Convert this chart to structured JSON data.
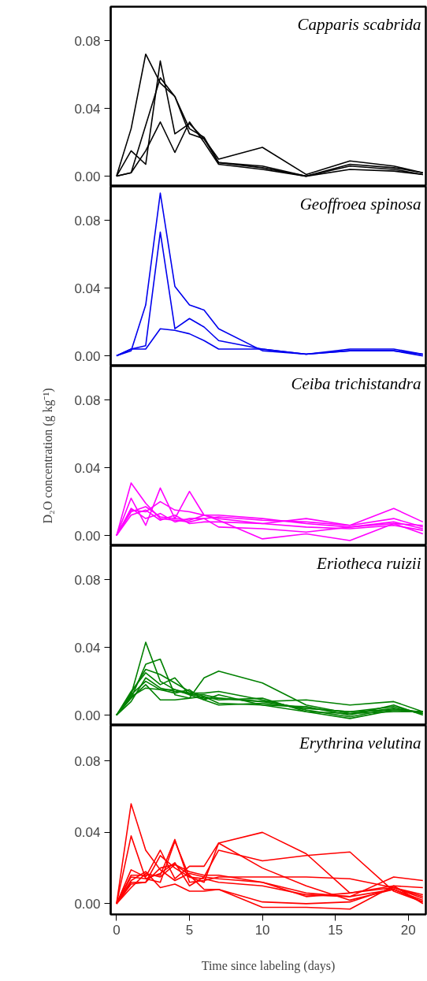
{
  "chart_data": [
    {
      "type": "line",
      "title": "Capparis scabrida",
      "x": [
        0,
        1,
        2,
        3,
        4,
        5,
        6,
        7,
        10,
        13,
        16,
        19,
        21
      ],
      "xlim": [
        -0.4,
        21.2
      ],
      "ylim": [
        -0.006,
        0.1
      ],
      "yticks": [
        {
          "value": 0,
          "label": "0.00"
        },
        {
          "value": 0.04,
          "label": "0.04"
        },
        {
          "value": 0.08,
          "label": "0.08"
        }
      ],
      "tick_labels": "y",
      "series": [
        {
          "color": "#000000",
          "values": [
            0,
            0.028,
            0.072,
            0.055,
            0.047,
            0.025,
            0.022,
            0.01,
            0.017,
            0.001,
            0.009,
            0.006,
            0.002
          ]
        },
        {
          "color": "#000000",
          "values": [
            0,
            0.015,
            0.007,
            0.068,
            0.025,
            0.031,
            0.022,
            0.008,
            0.005,
            0.0,
            0.007,
            0.005,
            0.002
          ]
        },
        {
          "color": "#000000",
          "values": [
            0,
            0.002,
            0.03,
            0.058,
            0.047,
            0.028,
            0.023,
            0.008,
            0.006,
            0.0,
            0.006,
            0.004,
            0.001
          ]
        },
        {
          "color": "#000000",
          "values": [
            0,
            0.002,
            0.015,
            0.032,
            0.014,
            0.032,
            0.02,
            0.007,
            0.004,
            0.0,
            0.004,
            0.003,
            0.001
          ]
        }
      ]
    },
    {
      "type": "line",
      "title": "Geoffroea spinosa",
      "x": [
        0,
        1,
        2,
        3,
        4,
        5,
        6,
        7,
        10,
        13,
        16,
        19,
        21
      ],
      "xlim": [
        -0.4,
        21.2
      ],
      "ylim": [
        -0.006,
        0.1
      ],
      "yticks": [
        {
          "value": 0,
          "label": "0.00"
        },
        {
          "value": 0.04,
          "label": "0.04"
        },
        {
          "value": 0.08,
          "label": "0.08"
        }
      ],
      "tick_labels": "y",
      "series": [
        {
          "color": "#0000ee",
          "values": [
            0,
            0.003,
            0.03,
            0.096,
            0.041,
            0.03,
            0.027,
            0.016,
            0.003,
            0.001,
            0.003,
            0.003,
            0.001
          ]
        },
        {
          "color": "#0000ee",
          "values": [
            0,
            0.004,
            0.006,
            0.073,
            0.016,
            0.022,
            0.017,
            0.009,
            0.004,
            0.001,
            0.004,
            0.004,
            0.001
          ]
        },
        {
          "color": "#0000ee",
          "values": [
            0,
            0.004,
            0.004,
            0.016,
            0.015,
            0.013,
            0.009,
            0.004,
            0.004,
            0.001,
            0.003,
            0.003,
            0.0
          ]
        }
      ]
    },
    {
      "type": "line",
      "title": "Ceiba trichistandra",
      "ylabel": "D₂O concentration (g kg⁻¹)",
      "x": [
        0,
        1,
        2,
        3,
        4,
        5,
        6,
        7,
        10,
        13,
        16,
        19,
        21
      ],
      "xlim": [
        -0.4,
        21.2
      ],
      "ylim": [
        -0.006,
        0.1
      ],
      "yticks": [
        {
          "value": 0,
          "label": "0.00"
        },
        {
          "value": 0.04,
          "label": "0.04"
        },
        {
          "value": 0.08,
          "label": "0.08"
        }
      ],
      "tick_labels": "y",
      "series": [
        {
          "color": "#ff00ff",
          "values": [
            0,
            0.031,
            0.019,
            0.01,
            0.009,
            0.008,
            0.01,
            0.011,
            0.009,
            0.008,
            0.006,
            0.016,
            0.008
          ]
        },
        {
          "color": "#ff00ff",
          "values": [
            0,
            0.022,
            0.006,
            0.028,
            0.01,
            0.009,
            0.012,
            0.01,
            0.007,
            0.01,
            0.006,
            0.01,
            0.005
          ]
        },
        {
          "color": "#ff00ff",
          "values": [
            0,
            0.014,
            0.017,
            0.011,
            0.01,
            0.026,
            0.012,
            0.012,
            0.01,
            0.007,
            0.005,
            0.008,
            0.004
          ]
        },
        {
          "color": "#ff00ff",
          "values": [
            0,
            0.015,
            0.014,
            0.02,
            0.015,
            0.014,
            0.012,
            0.009,
            -0.002,
            0.001,
            -0.003,
            0.007,
            0.001
          ]
        },
        {
          "color": "#ff00ff",
          "values": [
            0,
            0.012,
            0.015,
            0.009,
            0.012,
            0.007,
            0.008,
            0.008,
            0.007,
            0.005,
            0.004,
            0.006,
            0.003
          ]
        },
        {
          "color": "#ff00ff",
          "values": [
            0,
            0.016,
            0.01,
            0.013,
            0.008,
            0.01,
            0.01,
            0.005,
            0.004,
            0.002,
            0.005,
            0.007,
            0.006
          ]
        }
      ]
    },
    {
      "type": "line",
      "title": "Eriotheca ruizii",
      "x": [
        0,
        1,
        2,
        3,
        4,
        5,
        6,
        7,
        10,
        13,
        16,
        19,
        21
      ],
      "xlim": [
        -0.4,
        21.2
      ],
      "ylim": [
        -0.006,
        0.1
      ],
      "yticks": [
        {
          "value": 0,
          "label": "0.00"
        },
        {
          "value": 0.04,
          "label": "0.04"
        },
        {
          "value": 0.08,
          "label": "0.08"
        }
      ],
      "tick_labels": "y",
      "series": [
        {
          "color": "#008000",
          "values": [
            0,
            0.012,
            0.043,
            0.02,
            0.015,
            0.013,
            0.01,
            0.01,
            0.008,
            0.004,
            0.002,
            0.003,
            0.002
          ]
        },
        {
          "color": "#008000",
          "values": [
            0,
            0.01,
            0.03,
            0.033,
            0.012,
            0.01,
            0.022,
            0.026,
            0.019,
            0.006,
            0.001,
            0.004,
            0.001
          ]
        },
        {
          "color": "#008000",
          "values": [
            0,
            0.014,
            0.025,
            0.018,
            0.022,
            0.012,
            0.012,
            0.01,
            0.008,
            0.009,
            0.006,
            0.008,
            0.002
          ]
        },
        {
          "color": "#008000",
          "values": [
            0,
            0.008,
            0.022,
            0.016,
            0.014,
            0.013,
            0.013,
            0.014,
            0.009,
            0.003,
            -0.001,
            0.004,
            0.001
          ]
        },
        {
          "color": "#008000",
          "values": [
            0,
            0.01,
            0.018,
            0.009,
            0.009,
            0.01,
            0.011,
            0.007,
            0.006,
            0.002,
            -0.002,
            0.003,
            0.002
          ]
        },
        {
          "color": "#008000",
          "values": [
            0,
            0.012,
            0.02,
            0.015,
            0.013,
            0.015,
            0.009,
            0.012,
            0.006,
            0.005,
            0.0,
            0.006,
            0.0
          ]
        },
        {
          "color": "#008000",
          "values": [
            0,
            0.011,
            0.016,
            0.015,
            0.015,
            0.012,
            0.009,
            0.006,
            0.007,
            0.004,
            0.002,
            0.005,
            0.001
          ]
        },
        {
          "color": "#008000",
          "values": [
            0,
            0.013,
            0.027,
            0.024,
            0.019,
            0.014,
            0.011,
            0.009,
            0.01,
            0.002,
            0.001,
            0.002,
            0.002
          ]
        }
      ]
    },
    {
      "type": "line",
      "title": "Erythrina velutina",
      "xlabel": "Time since labeling (days)",
      "x": [
        0,
        1,
        2,
        3,
        4,
        5,
        6,
        7,
        10,
        13,
        16,
        19,
        21
      ],
      "xlim": [
        -0.4,
        21.2
      ],
      "xticks": [
        0,
        5,
        10,
        15,
        20
      ],
      "ylim": [
        -0.006,
        0.1
      ],
      "yticks": [
        {
          "value": 0,
          "label": "0.00"
        },
        {
          "value": 0.04,
          "label": "0.04"
        },
        {
          "value": 0.08,
          "label": "0.08"
        }
      ],
      "series": [
        {
          "color": "#ff0000",
          "values": [
            0,
            0.056,
            0.03,
            0.019,
            0.013,
            0.017,
            0.015,
            0.014,
            0.012,
            0.006,
            0.004,
            0.008,
            0.001
          ]
        },
        {
          "color": "#ff0000",
          "values": [
            0,
            0.038,
            0.014,
            0.012,
            0.035,
            0.015,
            0.012,
            0.034,
            0.02,
            0.01,
            0.002,
            0.008,
            0.002
          ]
        },
        {
          "color": "#ff0000",
          "values": [
            0,
            0.019,
            0.015,
            0.03,
            0.014,
            0.021,
            0.021,
            0.034,
            0.04,
            0.028,
            0.006,
            0.01,
            0.009
          ]
        },
        {
          "color": "#ff0000",
          "values": [
            0,
            0.015,
            0.014,
            0.017,
            0.023,
            0.01,
            0.015,
            0.03,
            0.024,
            0.027,
            0.029,
            0.007,
            0.001
          ]
        },
        {
          "color": "#ff0000",
          "values": [
            0,
            0.016,
            0.016,
            0.016,
            0.036,
            0.012,
            0.013,
            0.015,
            0.015,
            0.015,
            0.014,
            0.009,
            0.005
          ]
        },
        {
          "color": "#ff0000",
          "values": [
            0,
            0.011,
            0.012,
            0.027,
            0.02,
            0.015,
            0.014,
            0.012,
            0.01,
            0.005,
            0.004,
            0.015,
            0.013
          ]
        },
        {
          "color": "#ff0000",
          "values": [
            0,
            0.009,
            0.017,
            0.015,
            0.022,
            0.016,
            0.008,
            0.008,
            0.001,
            0.0,
            0.001,
            0.009,
            0.004
          ]
        },
        {
          "color": "#ff0000",
          "values": [
            0,
            0.013,
            0.018,
            0.009,
            0.011,
            0.007,
            0.007,
            0.008,
            -0.002,
            -0.002,
            -0.003,
            0.01,
            0.0
          ]
        },
        {
          "color": "#ff0000",
          "values": [
            0,
            0.012,
            0.012,
            0.02,
            0.022,
            0.018,
            0.016,
            0.016,
            0.012,
            0.004,
            0.006,
            0.009,
            0.003
          ]
        }
      ]
    }
  ]
}
